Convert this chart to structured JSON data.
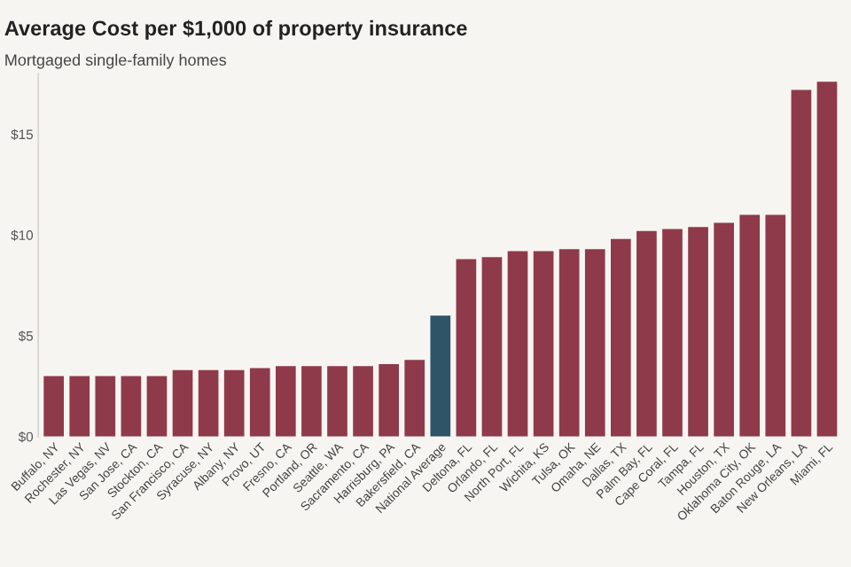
{
  "chart_data": {
    "type": "bar",
    "title": "Average Cost per $1,000 of property insurance",
    "subtitle": "Mortgaged single-family homes",
    "categories": [
      "Buffalo, NY",
      "Rochester, NY",
      "Las Vegas, NV",
      "San Jose, CA",
      "Stockton, CA",
      "San Francisco, CA",
      "Syracuse, NY",
      "Albany, NY",
      "Provo, UT",
      "Fresno, CA",
      "Portland, OR",
      "Seattle, WA",
      "Sacramento, CA",
      "Harrisburg, PA",
      "Bakersfield, CA",
      "National Average",
      "Deltona, FL",
      "Orlando, FL",
      "North Port, FL",
      "Wichita, KS",
      "Tulsa, OK",
      "Omaha, NE",
      "Dallas, TX",
      "Palm Bay, FL",
      "Cape Coral, FL",
      "Tampa, FL",
      "Houston, TX",
      "Oklahoma City, OK",
      "Baton Rouge, LA",
      "New Orleans, LA",
      "Miami, FL"
    ],
    "values": [
      3.0,
      3.0,
      3.0,
      3.0,
      3.0,
      3.3,
      3.3,
      3.3,
      3.4,
      3.5,
      3.5,
      3.5,
      3.5,
      3.6,
      3.8,
      6.0,
      8.8,
      8.9,
      9.2,
      9.2,
      9.3,
      9.3,
      9.8,
      10.2,
      10.3,
      10.4,
      10.6,
      11.0,
      11.0,
      17.2,
      17.6
    ],
    "colors": [
      "#8e3a4a",
      "#8e3a4a",
      "#8e3a4a",
      "#8e3a4a",
      "#8e3a4a",
      "#8e3a4a",
      "#8e3a4a",
      "#8e3a4a",
      "#8e3a4a",
      "#8e3a4a",
      "#8e3a4a",
      "#8e3a4a",
      "#8e3a4a",
      "#8e3a4a",
      "#8e3a4a",
      "#2f5468",
      "#8e3a4a",
      "#8e3a4a",
      "#8e3a4a",
      "#8e3a4a",
      "#8e3a4a",
      "#8e3a4a",
      "#8e3a4a",
      "#8e3a4a",
      "#8e3a4a",
      "#8e3a4a",
      "#8e3a4a",
      "#8e3a4a",
      "#8e3a4a",
      "#8e3a4a",
      "#8e3a4a"
    ],
    "ylim": [
      0,
      18
    ],
    "yticks": [
      {
        "value": 0,
        "label": "$0"
      },
      {
        "value": 5,
        "label": "$5"
      },
      {
        "value": 10,
        "label": "$10"
      },
      {
        "value": 15,
        "label": "$15"
      }
    ],
    "grid": false
  }
}
